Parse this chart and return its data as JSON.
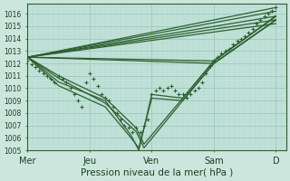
{
  "xlabel": "Pression niveau de la mer( hPa )",
  "bg_color": "#cce6de",
  "plot_bg_color": "#c0e2d8",
  "grid_major_color": "#a0ccbf",
  "grid_minor_color": "#b4d8cc",
  "line_color": "#2d6030",
  "ylim": [
    1005.0,
    1016.8
  ],
  "yticks": [
    1005,
    1006,
    1007,
    1008,
    1009,
    1010,
    1011,
    1012,
    1013,
    1014,
    1015,
    1016
  ],
  "xtick_labels": [
    "Mer",
    "Jeu",
    "Ven",
    "Sam",
    "D"
  ],
  "xtick_pos": [
    0,
    48,
    96,
    144,
    192
  ],
  "xlim": [
    0,
    200
  ],
  "fan_up": [
    {
      "x": [
        0,
        192
      ],
      "y": [
        1012.5,
        1016.5
      ]
    },
    {
      "x": [
        0,
        192
      ],
      "y": [
        1012.5,
        1016.2
      ]
    },
    {
      "x": [
        0,
        192
      ],
      "y": [
        1012.5,
        1015.8
      ]
    },
    {
      "x": [
        0,
        192
      ],
      "y": [
        1012.5,
        1015.5
      ]
    },
    {
      "x": [
        0,
        192
      ],
      "y": [
        1012.5,
        1015.2
      ]
    },
    {
      "x": [
        0,
        144,
        192
      ],
      "y": [
        1012.5,
        1012.2,
        1015.8
      ]
    },
    {
      "x": [
        0,
        144,
        192
      ],
      "y": [
        1012.5,
        1012.0,
        1015.5
      ]
    }
  ],
  "swooping_lines": [
    {
      "x": [
        0,
        24,
        60,
        84,
        90,
        120,
        144,
        192
      ],
      "y": [
        1012.5,
        1011.0,
        1009.2,
        1006.8,
        1005.5,
        1009.2,
        1012.2,
        1015.8
      ]
    },
    {
      "x": [
        0,
        24,
        60,
        84,
        90,
        120,
        144,
        192
      ],
      "y": [
        1012.5,
        1010.8,
        1008.8,
        1006.5,
        1005.2,
        1009.0,
        1012.0,
        1015.5
      ]
    },
    {
      "x": [
        0,
        24,
        60,
        80,
        86,
        96,
        120,
        144,
        192
      ],
      "y": [
        1012.5,
        1010.5,
        1009.0,
        1006.2,
        1005.0,
        1009.5,
        1009.2,
        1012.2,
        1015.8
      ]
    },
    {
      "x": [
        0,
        24,
        60,
        80,
        86,
        96,
        120,
        144,
        192
      ],
      "y": [
        1012.5,
        1010.2,
        1008.5,
        1006.0,
        1005.2,
        1009.2,
        1009.0,
        1012.0,
        1015.5
      ]
    }
  ],
  "detail_x": [
    0,
    3,
    6,
    9,
    12,
    15,
    18,
    21,
    24,
    27,
    30,
    33,
    36,
    39,
    42,
    45,
    48,
    51,
    54,
    57,
    60,
    63,
    66,
    69,
    72,
    75,
    78,
    81,
    84,
    87,
    90,
    93,
    96,
    99,
    102,
    105,
    108,
    111,
    114,
    117,
    120,
    123,
    126,
    129,
    132,
    135,
    138,
    141,
    144,
    147,
    150,
    153,
    156,
    159,
    162,
    165,
    168,
    171,
    174,
    177,
    180,
    183,
    186,
    189,
    192
  ],
  "detail_y": [
    1012.2,
    1011.9,
    1011.7,
    1011.4,
    1011.2,
    1011.0,
    1010.8,
    1010.5,
    1011.0,
    1010.8,
    1010.5,
    1010.0,
    1009.5,
    1009.0,
    1008.5,
    1010.5,
    1011.2,
    1010.8,
    1010.2,
    1009.5,
    1009.2,
    1009.0,
    1008.5,
    1008.0,
    1007.5,
    1007.0,
    1006.8,
    1006.5,
    1006.8,
    1006.5,
    1007.0,
    1007.5,
    1009.5,
    1009.8,
    1010.0,
    1009.8,
    1010.0,
    1010.2,
    1009.8,
    1009.5,
    1009.5,
    1009.2,
    1009.5,
    1009.8,
    1010.0,
    1010.5,
    1011.2,
    1011.8,
    1012.2,
    1012.5,
    1012.8,
    1013.0,
    1013.2,
    1013.5,
    1013.8,
    1014.0,
    1014.2,
    1014.5,
    1014.8,
    1015.2,
    1015.5,
    1015.8,
    1016.0,
    1016.2,
    1016.5
  ]
}
